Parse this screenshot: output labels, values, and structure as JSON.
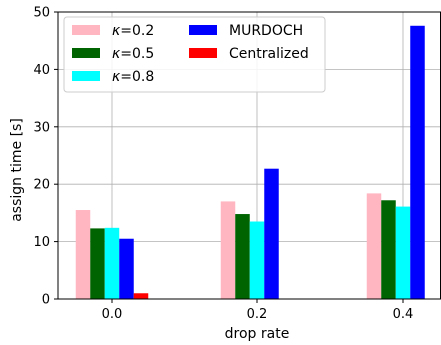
{
  "chart_data": {
    "type": "bar",
    "title": "",
    "xlabel": "drop rate",
    "ylabel": "assign time [s]",
    "categories": [
      "0.0",
      "0.2",
      "0.4"
    ],
    "ylim": [
      0,
      50
    ],
    "yticks": [
      "0",
      "10",
      "20",
      "30",
      "40",
      "50"
    ],
    "grid": true,
    "legend_position": "top-left",
    "legend_columns": 2,
    "series": [
      {
        "name": "κ=0.2",
        "label_prefix": "κ",
        "label_value": "=0.2",
        "color": "#ffb6c1",
        "values": [
          15.5,
          17.0,
          18.4
        ]
      },
      {
        "name": "κ=0.5",
        "label_prefix": "κ",
        "label_value": "=0.5",
        "color": "#006400",
        "values": [
          12.3,
          14.8,
          17.2
        ]
      },
      {
        "name": "κ=0.8",
        "label_prefix": "κ",
        "label_value": "=0.8",
        "color": "#00ffff",
        "values": [
          12.4,
          13.5,
          16.1
        ]
      },
      {
        "name": "MURDOCH",
        "label_prefix": "",
        "label_value": "MURDOCH",
        "color": "#0000ff",
        "values": [
          10.5,
          22.7,
          47.6
        ]
      },
      {
        "name": "Centralized",
        "label_prefix": "",
        "label_value": "Centralized",
        "color": "#ff0000",
        "values": [
          1.0,
          0.0,
          0.0
        ]
      }
    ]
  }
}
